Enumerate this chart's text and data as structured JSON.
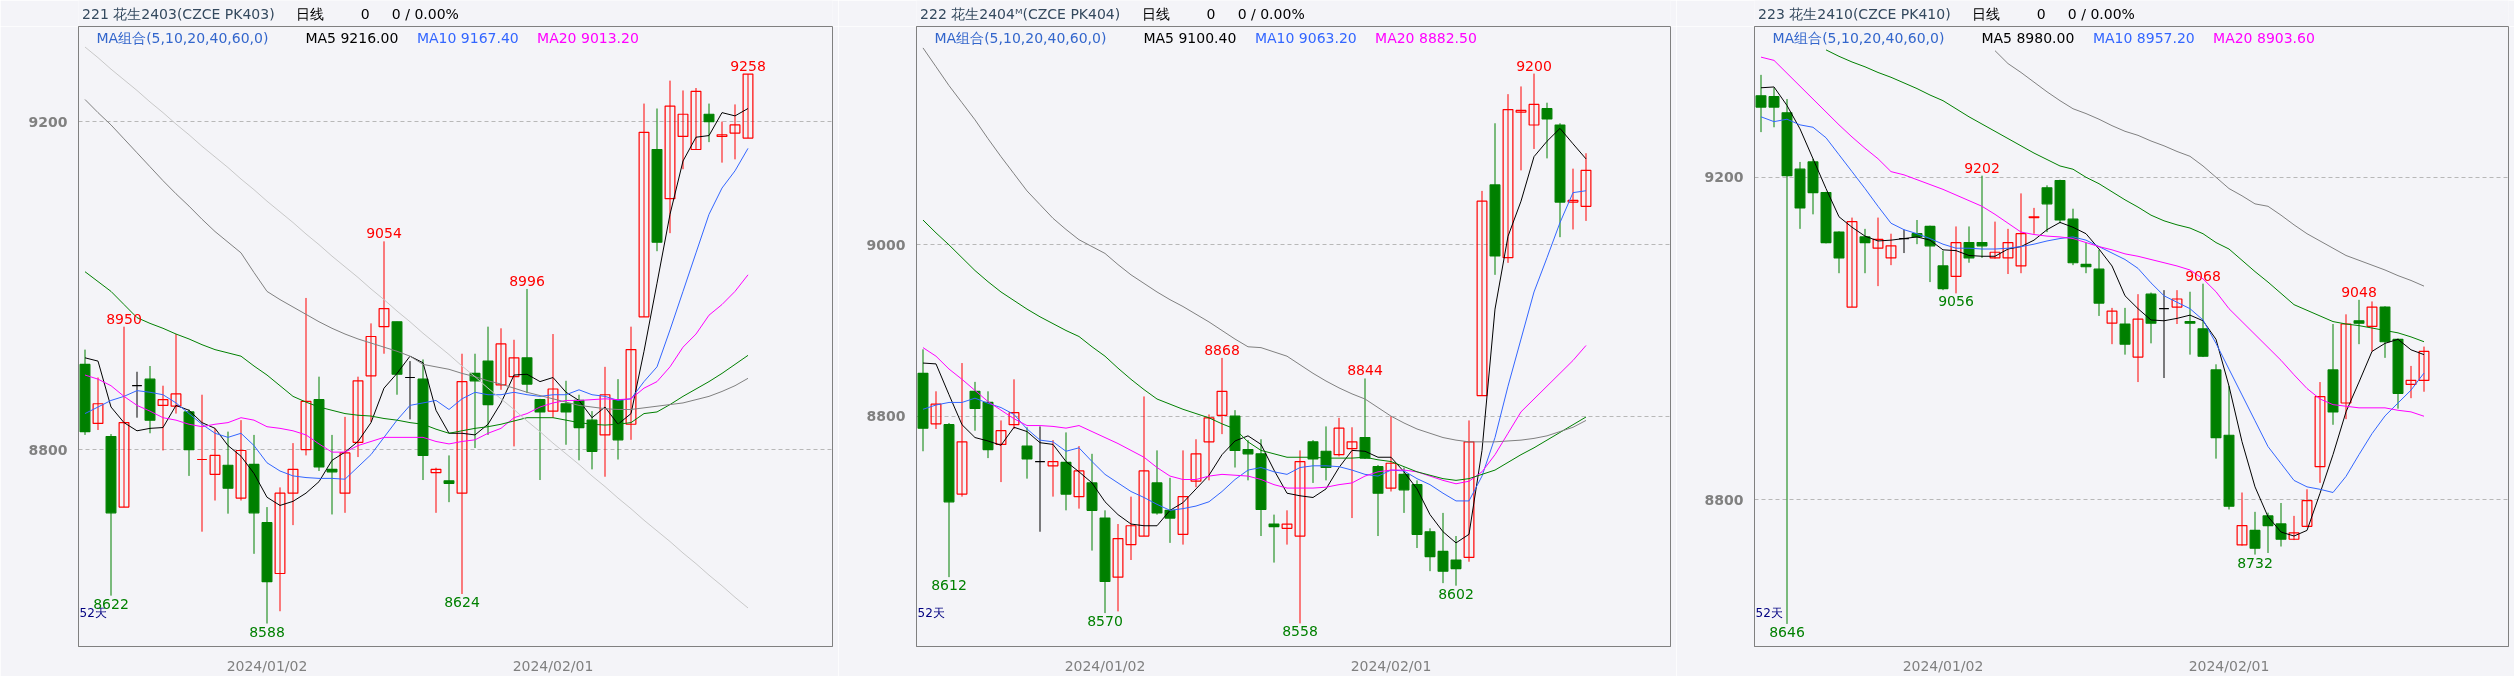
{
  "chart_data": [
    {
      "type": "candlestick",
      "title": "221 花生2403(CZCE PK403)",
      "ohlc": [
        [
          8904,
          8922,
          8818,
          8822
        ],
        [
          8832,
          8888,
          8824,
          8856
        ],
        [
          8816,
          8819,
          8622,
          8723
        ],
        [
          8730,
          8950,
          8730,
          8833
        ],
        [
          8878,
          8895,
          8839,
          8878
        ],
        [
          8886,
          8902,
          8820,
          8836
        ],
        [
          8854,
          8878,
          8799,
          8861
        ],
        [
          8853,
          8941,
          8844,
          8868
        ],
        [
          8846,
          8849,
          8768,
          8800
        ],
        [
          8788,
          8867,
          8700,
          8788
        ],
        [
          8770,
          8826,
          8738,
          8793
        ],
        [
          8781,
          8822,
          8722,
          8753
        ],
        [
          8741,
          8836,
          8738,
          8799
        ],
        [
          8782,
          8818,
          8673,
          8723
        ],
        [
          8711,
          8730,
          8588,
          8639
        ],
        [
          8649,
          8754,
          8603,
          8747
        ],
        [
          8747,
          8808,
          8708,
          8776
        ],
        [
          8800,
          8985,
          8793,
          8859
        ],
        [
          8861,
          8889,
          8774,
          8779
        ],
        [
          8776,
          8818,
          8721,
          8773
        ],
        [
          8747,
          8840,
          8723,
          8796
        ],
        [
          8809,
          8889,
          8791,
          8884
        ],
        [
          8890,
          8954,
          8834,
          8938
        ],
        [
          8950,
          9054,
          8917,
          8972
        ],
        [
          8956,
          8956,
          8867,
          8892
        ],
        [
          8888,
          8908,
          8837,
          8888
        ],
        [
          8886,
          8910,
          8763,
          8793
        ],
        [
          8772,
          8778,
          8723,
          8776
        ],
        [
          8762,
          8793,
          8736,
          8759
        ],
        [
          8747,
          8917,
          8624,
          8883
        ],
        [
          8893,
          8917,
          8802,
          8884
        ],
        [
          8908,
          8950,
          8818,
          8855
        ],
        [
          8879,
          8948,
          8873,
          8929
        ],
        [
          8889,
          8934,
          8804,
          8912
        ],
        [
          8912,
          8996,
          8869,
          8880
        ],
        [
          8861,
          8862,
          8763,
          8846
        ],
        [
          8847,
          8941,
          8839,
          8874
        ],
        [
          8856,
          8884,
          8806,
          8846
        ],
        [
          8860,
          8867,
          8787,
          8827
        ],
        [
          8836,
          8847,
          8776,
          8798
        ],
        [
          8818,
          8901,
          8767,
          8867
        ],
        [
          8861,
          8886,
          8788,
          8812
        ],
        [
          8831,
          8950,
          8812,
          8922
        ],
        [
          8962,
          9222,
          8962,
          9187
        ],
        [
          9166,
          9216,
          9042,
          9053
        ],
        [
          9106,
          9250,
          9064,
          9219
        ],
        [
          9182,
          9238,
          9142,
          9209
        ],
        [
          9166,
          9241,
          9166,
          9237
        ],
        [
          9209,
          9222,
          9175,
          9200
        ],
        [
          9182,
          9200,
          9150,
          9184
        ],
        [
          9186,
          9221,
          9154,
          9196
        ],
        [
          9180,
          9258,
          9180,
          9258
        ]
      ],
      "colors": [
        "#008000",
        "#ff0000",
        "#008000",
        "#ff0000",
        "#000000",
        "#008000",
        "#ff0000",
        "#ff0000",
        "#008000",
        "#ff0000",
        "#ff0000",
        "#008000",
        "#ff0000",
        "#008000",
        "#008000",
        "#ff0000",
        "#ff0000",
        "#ff0000",
        "#008000",
        "#008000",
        "#ff0000",
        "#ff0000",
        "#ff0000",
        "#ff0000",
        "#008000",
        "#000000",
        "#008000",
        "#ff0000",
        "#008000",
        "#ff0000",
        "#008000",
        "#008000",
        "#ff0000",
        "#ff0000",
        "#008000",
        "#008000",
        "#ff0000",
        "#008000",
        "#008000",
        "#008000",
        "#ff0000",
        "#008000",
        "#ff0000",
        "#ff0000",
        "#008000",
        "#ff0000",
        "#ff0000",
        "#ff0000",
        "#008000",
        "#ff0000",
        "#ff0000",
        "#ff0000"
      ],
      "categories": [
        null,
        null,
        null,
        null,
        null,
        null,
        null,
        null,
        null,
        null,
        null,
        null,
        null,
        null,
        "2024/01/02",
        null,
        null,
        null,
        null,
        null,
        null,
        null,
        null,
        null,
        null,
        null,
        null,
        null,
        null,
        null,
        null,
        null,
        null,
        null,
        null,
        null,
        "2024/02/01",
        null,
        null,
        null,
        null,
        null,
        null,
        null,
        null,
        null,
        null,
        null,
        null,
        null,
        null,
        null
      ],
      "ylim": [
        8560,
        9316
      ],
      "yticks": [
        8800,
        9200
      ],
      "grid": "y",
      "legend": "top",
      "series": [
        {
          "type": "line",
          "name": "MA5 9216.00",
          "color": "#000000",
          "values": [
            8912,
            8908,
            8852,
            8833,
            8823,
            8826,
            8827,
            8854,
            8848,
            8833,
            8826,
            8805,
            8792,
            8771,
            8742,
            8732,
            8737,
            8747,
            8761,
            8787,
            8797,
            8810,
            8833,
            8875,
            8893,
            8914,
            8906,
            8848,
            8820,
            8820,
            8818,
            8831,
            8857,
            8891,
            8892,
            8883,
            8888,
            8870,
            8860,
            8839,
            8852,
            8831,
            8844,
            8920,
            9003,
            9087,
            9152,
            9181,
            9183,
            9211,
            9207,
            9216
          ]
        },
        {
          "type": "line",
          "name": "MA10 9167.40",
          "color": "#3366ff",
          "values": [
            8844,
            8852,
            8860,
            8865,
            8872,
            8870,
            8867,
            8857,
            8844,
            8831,
            8820,
            8815,
            8820,
            8805,
            8784,
            8774,
            8768,
            8766,
            8765,
            8765,
            8764,
            8779,
            8794,
            8815,
            8836,
            8854,
            8857,
            8860,
            8849,
            8862,
            8870,
            8867,
            8867,
            8870,
            8867,
            8865,
            8867,
            8867,
            8873,
            8867,
            8865,
            8860,
            8862,
            8883,
            8901,
            8946,
            8993,
            9040,
            9087,
            9119,
            9140,
            9167.4
          ]
        },
        {
          "type": "line",
          "name": "MA20 9013.20",
          "color": "#ff00ff",
          "values": [
            8891,
            8886,
            8878,
            8865,
            8854,
            8847,
            8839,
            8836,
            8831,
            8828,
            8831,
            8833,
            8839,
            8836,
            8828,
            8826,
            8823,
            8818,
            8807,
            8797,
            8797,
            8805,
            8810,
            8815,
            8815,
            8815,
            8815,
            8810,
            8807,
            8810,
            8812,
            8820,
            8826,
            8839,
            8844,
            8852,
            8857,
            8860,
            8860,
            8861,
            8862,
            8861,
            8862,
            8875,
            8883,
            8901,
            8925,
            8941,
            8964,
            8977,
            8993,
            9013.2
          ]
        },
        {
          "type": "line",
          "color": "#008000",
          "values": [
            9017,
            9005,
            8993,
            8977,
            8961,
            8954,
            8948,
            8941,
            8935,
            8928,
            8922,
            8918,
            8914,
            8902,
            8891,
            8878,
            8865,
            8858,
            8852,
            8848,
            8844,
            8842,
            8841,
            8838,
            8836,
            8833,
            8831,
            8825,
            8820,
            8823,
            8826,
            8828,
            8831,
            8835,
            8839,
            8839,
            8839,
            8836,
            8833,
            8831,
            8830,
            8831,
            8833,
            8844,
            8846,
            8855,
            8865,
            8874,
            8883,
            8893,
            8904,
            8915
          ]
        },
        {
          "type": "line",
          "color": "#808080",
          "values": [
            9227,
            9211,
            9196,
            9179,
            9162,
            9145,
            9128,
            9112,
            9097,
            9081,
            9066,
            9053,
            9040,
            9016,
            8993,
            8983,
            8974,
            8965,
            8956,
            8948,
            8941,
            8935,
            8930,
            8925,
            8920,
            8914,
            8904,
            8901,
            8898,
            8893,
            8889,
            8884,
            8880,
            8875,
            8870,
            8866,
            8862,
            8858,
            8854,
            8852,
            8850,
            8849,
            8849,
            8851,
            8853,
            8855,
            8857,
            8861,
            8865,
            8871,
            8878,
            8887
          ]
        },
        {
          "type": "line",
          "color": "#c8c8c8",
          "values": [
            9291,
            9278,
            9264,
            9251,
            9238,
            9224,
            9211,
            9197,
            9184,
            9170,
            9157,
            9144,
            9130,
            9117,
            9103,
            9090,
            9077,
            9063,
            9050,
            9036,
            9023,
            9010,
            8996,
            8983,
            8969,
            8956,
            8942,
            8929,
            8916,
            8902,
            8889,
            8875,
            8862,
            8849,
            8835,
            8822,
            8808,
            8795,
            8782,
            8768,
            8755,
            8741,
            8728,
            8714,
            8701,
            8688,
            8674,
            8661,
            8647,
            8634,
            8620,
            8607
          ]
        }
      ],
      "annotations": [
        "日线",
        "0",
        "0 / 0.00%",
        "MA组合(5,10,20,40,60,0)",
        "52天",
        {
          "text": "8950",
          "y": 8950
        },
        {
          "text": "9054",
          "y": 9054
        },
        {
          "text": "8996",
          "y": 8996
        },
        {
          "text": "9258",
          "y": 9258
        },
        {
          "text": "8622",
          "y": 8622
        },
        {
          "text": "8588",
          "y": 8588
        },
        {
          "text": "8624",
          "y": 8624
        }
      ]
    },
    {
      "type": "candlestick",
      "title": "222 花生2404ᴹ(CZCE PK404)",
      "ohlc": [
        [
          8850,
          8878,
          8759,
          8786
        ],
        [
          8791,
          8829,
          8785,
          8814
        ],
        [
          8790,
          8792,
          8612,
          8700
        ],
        [
          8709,
          8862,
          8706,
          8770
        ],
        [
          8829,
          8840,
          8783,
          8809
        ],
        [
          8816,
          8829,
          8751,
          8761
        ],
        [
          8767,
          8795,
          8723,
          8783
        ],
        [
          8790,
          8843,
          8785,
          8804
        ],
        [
          8765,
          8787,
          8727,
          8750
        ],
        [
          8747,
          8788,
          8665,
          8747
        ],
        [
          8742,
          8772,
          8706,
          8747
        ],
        [
          8746,
          8781,
          8690,
          8709
        ],
        [
          8706,
          8765,
          8692,
          8736
        ],
        [
          8722,
          8756,
          8643,
          8690
        ],
        [
          8681,
          8690,
          8570,
          8607
        ],
        [
          8612,
          8674,
          8572,
          8657
        ],
        [
          8650,
          8706,
          8632,
          8672
        ],
        [
          8660,
          8823,
          8660,
          8736
        ],
        [
          8722,
          8760,
          8685,
          8687
        ],
        [
          8690,
          8728,
          8652,
          8681
        ],
        [
          8662,
          8760,
          8650,
          8706
        ],
        [
          8724,
          8773,
          8717,
          8756
        ],
        [
          8770,
          8802,
          8725,
          8798
        ],
        [
          8801,
          8868,
          8779,
          8829
        ],
        [
          8800,
          8807,
          8740,
          8760
        ],
        [
          8761,
          8772,
          8725,
          8756
        ],
        [
          8756,
          8773,
          8660,
          8691
        ],
        [
          8674,
          8685,
          8629,
          8671
        ],
        [
          8669,
          8690,
          8650,
          8674
        ],
        [
          8660,
          8760,
          8558,
          8747
        ],
        [
          8770,
          8772,
          8722,
          8750
        ],
        [
          8759,
          8788,
          8725,
          8740
        ],
        [
          8755,
          8798,
          8753,
          8786
        ],
        [
          8762,
          8787,
          8681,
          8770
        ],
        [
          8775,
          8844,
          8750,
          8751
        ],
        [
          8741,
          8743,
          8660,
          8710
        ],
        [
          8716,
          8800,
          8712,
          8745
        ],
        [
          8732,
          8740,
          8687,
          8714
        ],
        [
          8720,
          8725,
          8646,
          8662
        ],
        [
          8665,
          8669,
          8619,
          8636
        ],
        [
          8642,
          8687,
          8605,
          8619
        ],
        [
          8632,
          8660,
          8602,
          8622
        ],
        [
          8635,
          8795,
          8630,
          8770
        ],
        [
          8824,
          9063,
          8824,
          9051
        ],
        [
          9070,
          9142,
          8965,
          8987
        ],
        [
          8985,
          9176,
          8979,
          9158
        ],
        [
          9155,
          9185,
          9087,
          9157
        ],
        [
          9140,
          9200,
          9112,
          9164
        ],
        [
          9159,
          9166,
          9101,
          9147
        ],
        [
          9140,
          9142,
          9009,
          9050
        ],
        [
          9050,
          9089,
          9018,
          9052
        ],
        [
          9045,
          9107,
          9028,
          9087
        ]
      ],
      "colors": [
        "#008000",
        "#ff0000",
        "#008000",
        "#ff0000",
        "#008000",
        "#008000",
        "#ff0000",
        "#ff0000",
        "#008000",
        "#000000",
        "#ff0000",
        "#008000",
        "#ff0000",
        "#008000",
        "#008000",
        "#ff0000",
        "#ff0000",
        "#ff0000",
        "#008000",
        "#008000",
        "#ff0000",
        "#ff0000",
        "#ff0000",
        "#ff0000",
        "#008000",
        "#008000",
        "#008000",
        "#008000",
        "#ff0000",
        "#ff0000",
        "#008000",
        "#008000",
        "#ff0000",
        "#ff0000",
        "#008000",
        "#008000",
        "#ff0000",
        "#008000",
        "#008000",
        "#008000",
        "#008000",
        "#008000",
        "#ff0000",
        "#ff0000",
        "#008000",
        "#ff0000",
        "#ff0000",
        "#ff0000",
        "#008000",
        "#008000",
        "#ff0000",
        "#ff0000"
      ],
      "categories": [
        null,
        null,
        null,
        null,
        null,
        null,
        null,
        null,
        null,
        null,
        null,
        null,
        null,
        null,
        "2024/01/02",
        null,
        null,
        null,
        null,
        null,
        null,
        null,
        null,
        null,
        null,
        null,
        null,
        null,
        null,
        null,
        null,
        null,
        null,
        null,
        null,
        null,
        "2024/02/01",
        null,
        null,
        null,
        null,
        null,
        null,
        null,
        null,
        null,
        null,
        null,
        null,
        null,
        null,
        null
      ],
      "ylim": [
        8531,
        9255
      ],
      "yticks": [
        8800,
        9000
      ],
      "grid": "y",
      "legend": "top",
      "series": [
        {
          "type": "line",
          "name": "MA5 9100.40",
          "color": "#000000",
          "values": [
            8862,
            8861,
            8825,
            8790,
            8775,
            8771,
            8766,
            8787,
            8782,
            8769,
            8767,
            8747,
            8735,
            8722,
            8700,
            8685,
            8674,
            8672,
            8672,
            8690,
            8699,
            8715,
            8731,
            8755,
            8771,
            8777,
            8767,
            8737,
            8710,
            8707,
            8705,
            8715,
            8740,
            8760,
            8759,
            8752,
            8752,
            8735,
            8715,
            8685,
            8665,
            8652,
            8662,
            8760,
            8925,
            9010,
            9051,
            9103,
            9121,
            9136,
            9118,
            9100.4
          ]
        },
        {
          "type": "line",
          "name": "MA10 9063.20",
          "color": "#3366ff",
          "values": [
            8808,
            8813,
            8816,
            8816,
            8821,
            8815,
            8810,
            8802,
            8785,
            8772,
            8770,
            8759,
            8763,
            8747,
            8732,
            8722,
            8712,
            8705,
            8697,
            8690,
            8692,
            8695,
            8700,
            8712,
            8726,
            8737,
            8740,
            8735,
            8732,
            8740,
            8742,
            8742,
            8741,
            8737,
            8732,
            8730,
            8737,
            8736,
            8727,
            8720,
            8710,
            8701,
            8701,
            8730,
            8775,
            8835,
            8890,
            8945,
            8985,
            9026,
            9061,
            9063.2
          ]
        },
        {
          "type": "line",
          "name": "MA20 8882.50",
          "color": "#ff00ff",
          "values": [
            8880,
            8870,
            8855,
            8843,
            8830,
            8817,
            8807,
            8797,
            8789,
            8789,
            8788,
            8786,
            8789,
            8782,
            8775,
            8768,
            8760,
            8752,
            8740,
            8730,
            8726,
            8726,
            8730,
            8732,
            8731,
            8730,
            8726,
            8720,
            8716,
            8716,
            8716,
            8717,
            8720,
            8722,
            8730,
            8735,
            8737,
            8737,
            8735,
            8730,
            8725,
            8721,
            8724,
            8735,
            8755,
            8780,
            8805,
            8820,
            8835,
            8850,
            8865,
            8882.5
          ]
        },
        {
          "type": "line",
          "color": "#008000",
          "values": [
            9029,
            9014,
            9000,
            8985,
            8970,
            8957,
            8945,
            8935,
            8925,
            8916,
            8908,
            8900,
            8893,
            8881,
            8870,
            8856,
            8843,
            8831,
            8820,
            8814,
            8808,
            8803,
            8798,
            8791,
            8785,
            8770,
            8760,
            8756,
            8752,
            8752,
            8752,
            8751,
            8751,
            8751,
            8752,
            8749,
            8747,
            8741,
            8735,
            8731,
            8727,
            8725,
            8727,
            8732,
            8737,
            8746,
            8755,
            8763,
            8772,
            8781,
            8790,
            8799
          ]
        },
        {
          "type": "line",
          "color": "#808080",
          "values": [
            9230,
            9208,
            9186,
            9166,
            9146,
            9124,
            9103,
            9083,
            9063,
            9047,
            9031,
            9018,
            9006,
            8998,
            8990,
            8977,
            8965,
            8955,
            8945,
            8936,
            8928,
            8919,
            8910,
            8900,
            8890,
            8881,
            8880,
            8875,
            8870,
            8860,
            8850,
            8841,
            8833,
            8826,
            8820,
            8810,
            8800,
            8792,
            8785,
            8780,
            8775,
            8772,
            8770,
            8770,
            8770,
            8771,
            8772,
            8774,
            8777,
            8782,
            8787,
            8795
          ]
        }
      ],
      "annotations": [
        "日线",
        "0",
        "0 / 0.00%",
        "MA组合(5,10,20,40,60,0)",
        "52天",
        {
          "text": "8612",
          "y": 8612
        },
        {
          "text": "8570",
          "y": 8570
        },
        {
          "text": "8868",
          "y": 8868
        },
        {
          "text": "8558",
          "y": 8558
        },
        {
          "text": "8844",
          "y": 8844
        },
        {
          "text": "8602",
          "y": 8602
        },
        {
          "text": "9200",
          "y": 9200
        }
      ]
    },
    {
      "type": "candlestick",
      "title": "223 花生2410(CZCE PK410)",
      "ohlc": [
        [
          9301,
          9327,
          9256,
          9287
        ],
        [
          9300,
          9311,
          9262,
          9287
        ],
        [
          9280,
          9297,
          8646,
          9202
        ],
        [
          9210,
          9219,
          9136,
          9162
        ],
        [
          9219,
          9223,
          9154,
          9181
        ],
        [
          9181,
          9182,
          9118,
          9119
        ],
        [
          9132,
          9133,
          9081,
          9100
        ],
        [
          9039,
          9150,
          9039,
          9145
        ],
        [
          9126,
          9136,
          9081,
          9119
        ],
        [
          9112,
          9150,
          9065,
          9123
        ],
        [
          9100,
          9130,
          9091,
          9115
        ],
        [
          9124,
          9135,
          9106,
          9124
        ],
        [
          9130,
          9147,
          9117,
          9126
        ],
        [
          9139,
          9140,
          9070,
          9115
        ],
        [
          9090,
          9109,
          9060,
          9062
        ],
        [
          9077,
          9139,
          9056,
          9119
        ],
        [
          9119,
          9139,
          9094,
          9100
        ],
        [
          9119,
          9202,
          9100,
          9115
        ],
        [
          9100,
          9145,
          9099,
          9107
        ],
        [
          9100,
          9136,
          9080,
          9119
        ],
        [
          9090,
          9180,
          9081,
          9130
        ],
        [
          9150,
          9162,
          9130,
          9151
        ],
        [
          9187,
          9190,
          9132,
          9167
        ],
        [
          9196,
          9197,
          9143,
          9147
        ],
        [
          9148,
          9161,
          9091,
          9094
        ],
        [
          9092,
          9119,
          9081,
          9089
        ],
        [
          9086,
          9110,
          9028,
          9044
        ],
        [
          9019,
          9038,
          8993,
          9034
        ],
        [
          9018,
          9038,
          8980,
          8993
        ],
        [
          8977,
          9055,
          8946,
          9024
        ],
        [
          9055,
          9057,
          8994,
          9019
        ],
        [
          9037,
          9060,
          8951,
          9037
        ],
        [
          9039,
          9060,
          9018,
          9049
        ],
        [
          9021,
          9058,
          8980,
          9019
        ],
        [
          9012,
          9068,
          8977,
          8978
        ],
        [
          8961,
          8968,
          8851,
          8877
        ],
        [
          8880,
          8941,
          8788,
          8792
        ],
        [
          8744,
          8809,
          8743,
          8768
        ],
        [
          8762,
          8785,
          8732,
          8740
        ],
        [
          8780,
          8784,
          8734,
          8768
        ],
        [
          8770,
          8796,
          8742,
          8751
        ],
        [
          8751,
          8780,
          8750,
          8759
        ],
        [
          8767,
          8813,
          8766,
          8799
        ],
        [
          8841,
          8946,
          8821,
          8928
        ],
        [
          8961,
          9018,
          8893,
          8909
        ],
        [
          8920,
          9030,
          8900,
          9018
        ],
        [
          9022,
          9048,
          8993,
          9019
        ],
        [
          9015,
          9046,
          8984,
          9039
        ],
        [
          9039,
          9040,
          8976,
          8996
        ],
        [
          8999,
          9000,
          8913,
          8932
        ],
        [
          8943,
          8966,
          8926,
          8948
        ],
        [
          8948,
          8990,
          8934,
          8984
        ]
      ],
      "colors": [
        "#008000",
        "#008000",
        "#008000",
        "#008000",
        "#008000",
        "#008000",
        "#008000",
        "#ff0000",
        "#008000",
        "#ff0000",
        "#ff0000",
        "#000000",
        "#008000",
        "#008000",
        "#008000",
        "#ff0000",
        "#008000",
        "#008000",
        "#ff0000",
        "#ff0000",
        "#ff0000",
        "#ff0000",
        "#008000",
        "#008000",
        "#008000",
        "#008000",
        "#008000",
        "#ff0000",
        "#008000",
        "#ff0000",
        "#008000",
        "#000000",
        "#ff0000",
        "#008000",
        "#008000",
        "#008000",
        "#008000",
        "#ff0000",
        "#008000",
        "#008000",
        "#008000",
        "#ff0000",
        "#ff0000",
        "#ff0000",
        "#008000",
        "#ff0000",
        "#008000",
        "#ff0000",
        "#008000",
        "#008000",
        "#ff0000",
        "#ff0000"
      ],
      "categories": [
        null,
        null,
        null,
        null,
        null,
        null,
        null,
        null,
        null,
        null,
        null,
        null,
        null,
        null,
        "2024/01/02",
        null,
        null,
        null,
        null,
        null,
        null,
        null,
        null,
        null,
        null,
        null,
        null,
        null,
        null,
        null,
        null,
        null,
        null,
        null,
        null,
        null,
        "2024/02/01",
        null,
        null,
        null,
        null,
        null,
        null,
        null,
        null,
        null,
        null,
        null,
        null,
        null,
        null,
        null
      ],
      "ylim": [
        8618,
        9387
      ],
      "yticks": [
        8800,
        9200
      ],
      "grid": "y",
      "legend": "top",
      "series": [
        {
          "type": "line",
          "name": "MA5 8980.00",
          "color": "#000000",
          "values": [
            9311,
            9312,
            9289,
            9260,
            9223,
            9186,
            9151,
            9138,
            9127,
            9121,
            9122,
            9124,
            9126,
            9122,
            9110,
            9109,
            9103,
            9102,
            9102,
            9111,
            9114,
            9122,
            9135,
            9144,
            9138,
            9130,
            9111,
            9090,
            9053,
            9037,
            9023,
            9022,
            9025,
            9029,
            9022,
            8999,
            8941,
            8872,
            8816,
            8779,
            8760,
            8755,
            8762,
            8808,
            8856,
            8909,
            8946,
            8984,
            8994,
            8999,
            8986,
            8980
          ]
        },
        {
          "type": "line",
          "name": "MA10 8957.20",
          "color": "#3366ff",
          "values": [
            9275,
            9269,
            9272,
            9265,
            9262,
            9249,
            9228,
            9207,
            9186,
            9164,
            9143,
            9135,
            9130,
            9124,
            9117,
            9112,
            9112,
            9111,
            9111,
            9112,
            9114,
            9117,
            9121,
            9124,
            9126,
            9122,
            9114,
            9106,
            9098,
            9087,
            9069,
            9053,
            9045,
            9037,
            9023,
            8994,
            8962,
            8930,
            8898,
            8866,
            8845,
            8824,
            8816,
            8813,
            8809,
            8829,
            8856,
            8882,
            8904,
            8920,
            8936,
            8957.2
          ]
        },
        {
          "type": "line",
          "name": "MA20 8903.60",
          "color": "#ff00ff",
          "values": [
            9349,
            9345,
            9329,
            9313,
            9297,
            9281,
            9265,
            9250,
            9236,
            9223,
            9207,
            9203,
            9197,
            9191,
            9185,
            9178,
            9171,
            9164,
            9154,
            9143,
            9132,
            9129,
            9127,
            9126,
            9124,
            9119,
            9114,
            9110,
            9105,
            9102,
            9098,
            9094,
            9090,
            9085,
            9074,
            9058,
            9037,
            9021,
            9005,
            8989,
            8973,
            8955,
            8938,
            8925,
            8918,
            8916,
            8914,
            8914,
            8914,
            8911,
            8909,
            8903.6
          ]
        },
        {
          "type": "line",
          "color": "#008000",
          "values": [
            null,
            null,
            null,
            null,
            null,
            9358,
            9350,
            9343,
            9337,
            9330,
            9324,
            9317,
            9310,
            9302,
            9295,
            9285,
            9275,
            9266,
            9257,
            9248,
            9239,
            9230,
            9222,
            9214,
            9210,
            9200,
            9192,
            9182,
            9172,
            9163,
            9153,
            9146,
            9141,
            9137,
            9130,
            9119,
            9111,
            9097,
            9083,
            9070,
            9056,
            9042,
            9035,
            9028,
            9021,
            9018,
            9016,
            9013,
            9010,
            9007,
            9002,
            8996
          ]
        },
        {
          "type": "line",
          "color": "#808080",
          "values": [
            null,
            null,
            null,
            null,
            null,
            null,
            null,
            null,
            null,
            null,
            null,
            null,
            null,
            null,
            null,
            null,
            null,
            null,
            9357,
            9341,
            9330,
            9318,
            9306,
            9295,
            9285,
            9279,
            9272,
            9264,
            9257,
            9252,
            9245,
            9239,
            9232,
            9226,
            9214,
            9200,
            9186,
            9177,
            9167,
            9164,
            9153,
            9141,
            9130,
            9121,
            9112,
            9103,
            9097,
            9091,
            9085,
            9078,
            9072,
            9065
          ]
        }
      ],
      "annotations": [
        "日线",
        "0",
        "0 / 0.00%",
        "MA组合(5,10,20,40,60,0)",
        "52天",
        {
          "text": "8646",
          "y": 8646
        },
        {
          "text": "9056",
          "y": 9056
        },
        {
          "text": "9202",
          "y": 9202
        },
        {
          "text": "9068",
          "y": 9068
        },
        {
          "text": "8732",
          "y": 8732
        },
        {
          "text": "9048",
          "y": 9048
        }
      ]
    }
  ]
}
